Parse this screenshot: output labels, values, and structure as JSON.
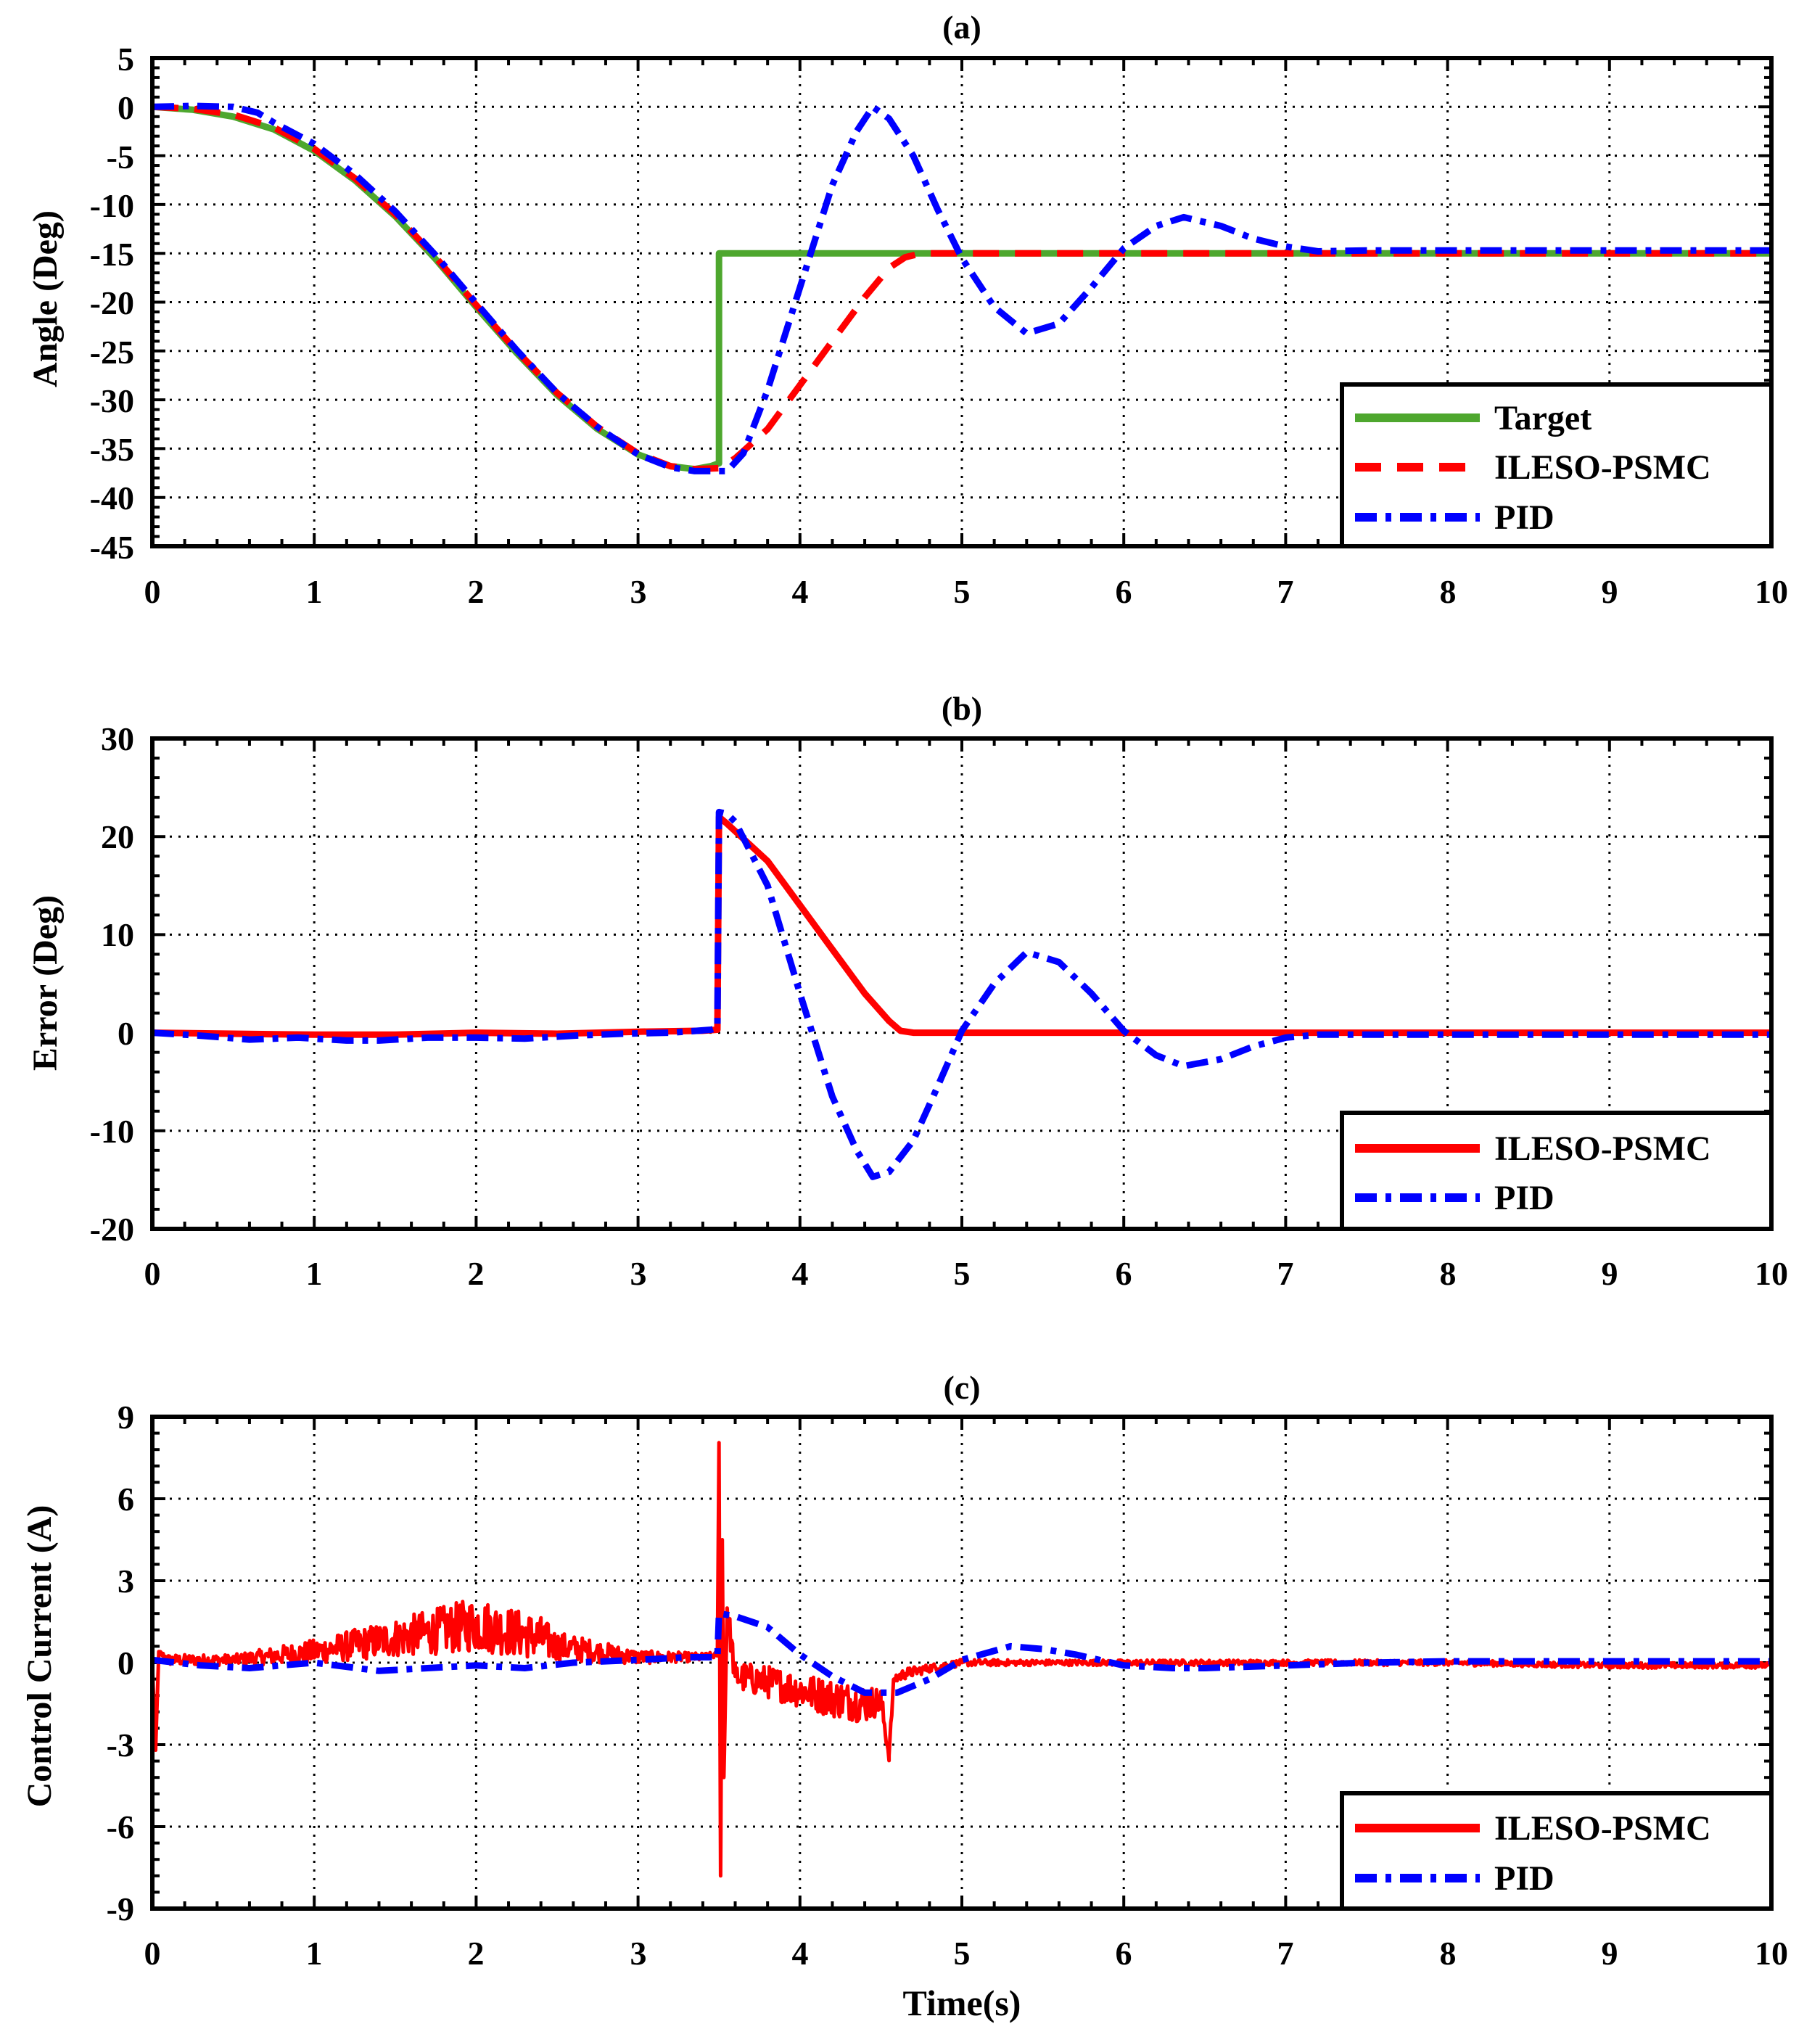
{
  "figure": {
    "xlabel": "Time(s)"
  },
  "colors": {
    "target": "#4ea72e",
    "ileso": "#ff0000",
    "pid": "#0000ff",
    "grid": "#000000",
    "axes": "#000000"
  },
  "chart_data": [
    {
      "type": "line",
      "title": "(a)",
      "xlabel": "",
      "ylabel": "Angle (Deg)",
      "xlim": [
        0,
        10
      ],
      "ylim": [
        -45,
        5
      ],
      "xticks": [
        "0",
        "1",
        "2",
        "3",
        "4",
        "5",
        "6",
        "7",
        "8",
        "9",
        "10"
      ],
      "yticks": [
        "5",
        "0",
        "-5",
        "-10",
        "-15",
        "-20",
        "-25",
        "-30",
        "-35",
        "-40",
        "-45"
      ],
      "legend_position": "bottom-right",
      "series": [
        {
          "name": "Target",
          "style": "solid",
          "color_key": "target",
          "x": [
            0,
            0.25,
            0.5,
            0.75,
            1.0,
            1.25,
            1.5,
            1.75,
            2.0,
            2.25,
            2.5,
            2.75,
            3.0,
            3.2,
            3.35,
            3.45,
            3.5,
            3.5,
            4.0,
            5.0,
            6.0,
            7.0,
            8.0,
            9.0,
            10.0
          ],
          "y": [
            0,
            -0.3,
            -1.0,
            -2.3,
            -4.5,
            -7.5,
            -11.2,
            -15.6,
            -20.5,
            -25.2,
            -29.5,
            -33.0,
            -35.6,
            -36.8,
            -37.1,
            -36.8,
            -36.5,
            -15,
            -15,
            -15,
            -15,
            -15,
            -15,
            -15,
            -15
          ]
        },
        {
          "name": "ILESO-PSMC",
          "style": "dashed",
          "color_key": "ileso",
          "x": [
            0,
            0.25,
            0.5,
            0.75,
            1.0,
            1.25,
            1.5,
            1.75,
            2.0,
            2.25,
            2.5,
            2.75,
            3.0,
            3.2,
            3.35,
            3.5,
            3.6,
            3.8,
            4.0,
            4.2,
            4.4,
            4.55,
            4.65,
            4.75,
            5.0,
            6.0,
            7.0,
            8.0,
            9.0,
            10.0
          ],
          "y": [
            0,
            -0.2,
            -0.8,
            -2.1,
            -4.3,
            -7.3,
            -11.0,
            -15.4,
            -20.3,
            -25.0,
            -29.3,
            -32.8,
            -35.5,
            -36.8,
            -37.1,
            -37.0,
            -36.0,
            -33.0,
            -28.5,
            -24.0,
            -19.5,
            -16.5,
            -15.4,
            -15.0,
            -15.0,
            -15.0,
            -15.0,
            -15.0,
            -15.0,
            -15.0
          ]
        },
        {
          "name": "PID",
          "style": "dashdot",
          "color_key": "pid",
          "x": [
            0,
            0.25,
            0.5,
            0.65,
            0.75,
            1.0,
            1.25,
            1.5,
            1.75,
            2.0,
            2.25,
            2.5,
            2.75,
            3.0,
            3.2,
            3.35,
            3.5,
            3.55,
            3.65,
            3.8,
            4.0,
            4.2,
            4.35,
            4.45,
            4.55,
            4.7,
            4.85,
            5.0,
            5.2,
            5.4,
            5.6,
            5.8,
            6.0,
            6.2,
            6.37,
            6.6,
            6.8,
            7.0,
            7.2,
            7.5,
            8.0,
            9.0,
            10.0
          ],
          "y": [
            0,
            0.1,
            0,
            -0.6,
            -1.6,
            -3.8,
            -6.9,
            -10.7,
            -15.2,
            -20.1,
            -24.9,
            -29.3,
            -32.8,
            -35.6,
            -36.9,
            -37.3,
            -37.3,
            -37.3,
            -35.5,
            -29.0,
            -18.5,
            -8.0,
            -2.5,
            0,
            -1.2,
            -5.0,
            -10.5,
            -15.5,
            -20.5,
            -23.2,
            -22.2,
            -18.5,
            -14.5,
            -12.2,
            -11.3,
            -12.2,
            -13.5,
            -14.3,
            -14.8,
            -14.7,
            -14.7,
            -14.7,
            -14.7
          ]
        }
      ]
    },
    {
      "type": "line",
      "title": "(b)",
      "xlabel": "",
      "ylabel": "Error (Deg)",
      "xlim": [
        0,
        10
      ],
      "ylim": [
        -20,
        30
      ],
      "xticks": [
        "0",
        "1",
        "2",
        "3",
        "4",
        "5",
        "6",
        "7",
        "8",
        "9",
        "10"
      ],
      "yticks": [
        "30",
        "20",
        "10",
        "0",
        "-10",
        "-20"
      ],
      "legend_position": "bottom-right",
      "series": [
        {
          "name": "ILESO-PSMC",
          "style": "solid",
          "color_key": "ileso",
          "x": [
            0,
            0.5,
            1.0,
            1.5,
            2.0,
            2.5,
            3.0,
            3.4,
            3.49,
            3.5,
            3.55,
            3.8,
            4.0,
            4.2,
            4.4,
            4.55,
            4.62,
            4.7,
            5.0,
            6.0,
            7.0,
            8.0,
            9.0,
            10.0
          ],
          "y": [
            0,
            -0.1,
            -0.2,
            -0.2,
            0,
            -0.1,
            0.1,
            0.2,
            0.3,
            22.0,
            21.3,
            17.5,
            13.0,
            8.5,
            4.0,
            1.2,
            0.2,
            0,
            0,
            0,
            0,
            0,
            0,
            0
          ]
        },
        {
          "name": "PID",
          "style": "dashdot",
          "color_key": "pid",
          "x": [
            0,
            0.3,
            0.6,
            0.9,
            1.2,
            1.4,
            1.7,
            2.0,
            2.3,
            2.6,
            2.9,
            3.2,
            3.45,
            3.49,
            3.5,
            3.55,
            3.6,
            3.8,
            4.0,
            4.2,
            4.35,
            4.45,
            4.55,
            4.7,
            4.85,
            5.0,
            5.2,
            5.4,
            5.6,
            5.8,
            6.0,
            6.2,
            6.37,
            6.6,
            6.8,
            7.0,
            7.2,
            7.5,
            8.0,
            9.0,
            10.0
          ],
          "y": [
            0,
            -0.3,
            -0.7,
            -0.5,
            -0.8,
            -0.8,
            -0.5,
            -0.5,
            -0.6,
            -0.3,
            -0.1,
            0,
            0.3,
            0.5,
            22.5,
            22.3,
            21.5,
            15.0,
            4.0,
            -6.5,
            -12.0,
            -14.7,
            -14.2,
            -11.0,
            -5.5,
            0.2,
            5.0,
            8.2,
            7.2,
            4.0,
            0.2,
            -2.3,
            -3.4,
            -2.7,
            -1.4,
            -0.5,
            -0.2,
            -0.2,
            -0.2,
            -0.2,
            -0.2
          ]
        }
      ]
    },
    {
      "type": "line",
      "title": "(c)",
      "xlabel": "Time(s)",
      "ylabel": "Control Current (A)",
      "xlim": [
        0,
        10
      ],
      "ylim": [
        -9,
        9
      ],
      "xticks": [
        "0",
        "1",
        "2",
        "3",
        "4",
        "5",
        "6",
        "7",
        "8",
        "9",
        "10"
      ],
      "yticks": [
        "9",
        "6",
        "3",
        "0",
        "-3",
        "-6",
        "-9"
      ],
      "legend_position": "bottom-right",
      "series": [
        {
          "name": "ILESO-PSMC",
          "style": "solid",
          "color_key": "ileso",
          "noisy": true,
          "x": [
            0,
            0.02,
            0.04,
            0.1,
            0.5,
            1.0,
            1.5,
            2.0,
            2.4,
            2.5,
            3.0,
            3.4,
            3.49,
            3.5,
            3.51,
            3.52,
            3.53,
            3.55,
            3.6,
            3.8,
            4.0,
            4.2,
            4.4,
            4.5,
            4.55,
            4.58,
            4.65,
            4.8,
            5.0,
            5.5,
            6.0,
            7.0,
            8.0,
            9.0,
            10.0
          ],
          "y": [
            0,
            -3.2,
            0.4,
            0.1,
            0.1,
            0.4,
            0.9,
            1.4,
            0.9,
            0.6,
            0.2,
            0.2,
            0.3,
            8.0,
            -7.8,
            4.5,
            -4.2,
            2.0,
            -0.5,
            -0.7,
            -1.0,
            -1.3,
            -1.5,
            -1.4,
            -3.4,
            -0.6,
            -0.4,
            -0.2,
            0,
            0,
            0,
            0,
            0,
            -0.1,
            -0.1
          ],
          "noise_amp": [
            0.05,
            0.05,
            0.05,
            0.2,
            0.2,
            0.45,
            0.7,
            1.0,
            0.8,
            0.55,
            0.25,
            0.15,
            0.1,
            0.1,
            0.1,
            0.1,
            0.1,
            0.5,
            0.55,
            0.6,
            0.65,
            0.7,
            0.7,
            0.5,
            0.2,
            0.2,
            0.2,
            0.15,
            0.12,
            0.1,
            0.1,
            0.1,
            0.1,
            0.1,
            0.1
          ]
        },
        {
          "name": "PID",
          "style": "dashdot",
          "color_key": "pid",
          "x": [
            0,
            0.3,
            0.6,
            1.0,
            1.4,
            1.7,
            2.0,
            2.3,
            2.6,
            3.0,
            3.3,
            3.49,
            3.5,
            3.6,
            3.8,
            4.0,
            4.2,
            4.4,
            4.6,
            4.8,
            5.0,
            5.3,
            5.5,
            5.7,
            6.0,
            6.3,
            6.5,
            7.0,
            7.5,
            8.0,
            9.0,
            10.0
          ],
          "y": [
            0.1,
            -0.1,
            -0.2,
            0,
            -0.3,
            -0.2,
            -0.1,
            -0.2,
            0,
            0.1,
            0.2,
            0.2,
            1.8,
            1.7,
            1.3,
            0.3,
            -0.5,
            -1.1,
            -1.1,
            -0.6,
            0.1,
            0.6,
            0.5,
            0.3,
            -0.1,
            -0.2,
            -0.2,
            -0.1,
            0,
            0.05,
            0.05,
            0.05
          ]
        }
      ]
    }
  ]
}
